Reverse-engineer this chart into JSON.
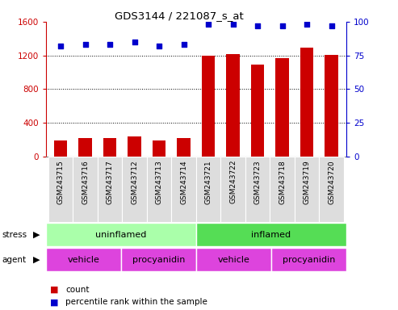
{
  "title": "GDS3144 / 221087_s_at",
  "samples": [
    "GSM243715",
    "GSM243716",
    "GSM243717",
    "GSM243712",
    "GSM243713",
    "GSM243714",
    "GSM243721",
    "GSM243722",
    "GSM243723",
    "GSM243718",
    "GSM243719",
    "GSM243720"
  ],
  "counts": [
    195,
    220,
    220,
    240,
    190,
    220,
    1195,
    1220,
    1090,
    1170,
    1295,
    1205
  ],
  "percentile_ranks": [
    82,
    83,
    83,
    85,
    82,
    83,
    98,
    98,
    97,
    97,
    98,
    97
  ],
  "bar_color": "#cc0000",
  "dot_color": "#0000cc",
  "ylim_left": [
    0,
    1600
  ],
  "ylim_right": [
    0,
    100
  ],
  "yticks_left": [
    0,
    400,
    800,
    1200,
    1600
  ],
  "yticks_right": [
    0,
    25,
    50,
    75,
    100
  ],
  "stress_labels": [
    "uninflamed",
    "inflamed"
  ],
  "stress_colors": [
    "#aaffaa",
    "#55dd55"
  ],
  "agent_labels": [
    "vehicle",
    "procyanidin",
    "vehicle",
    "procyanidin"
  ],
  "agent_color": "#dd44dd",
  "background_color": "#ffffff",
  "left_label_color": "#cc0000",
  "right_label_color": "#0000cc",
  "grid_color": "#000000",
  "tick_bg_color": "#dddddd"
}
